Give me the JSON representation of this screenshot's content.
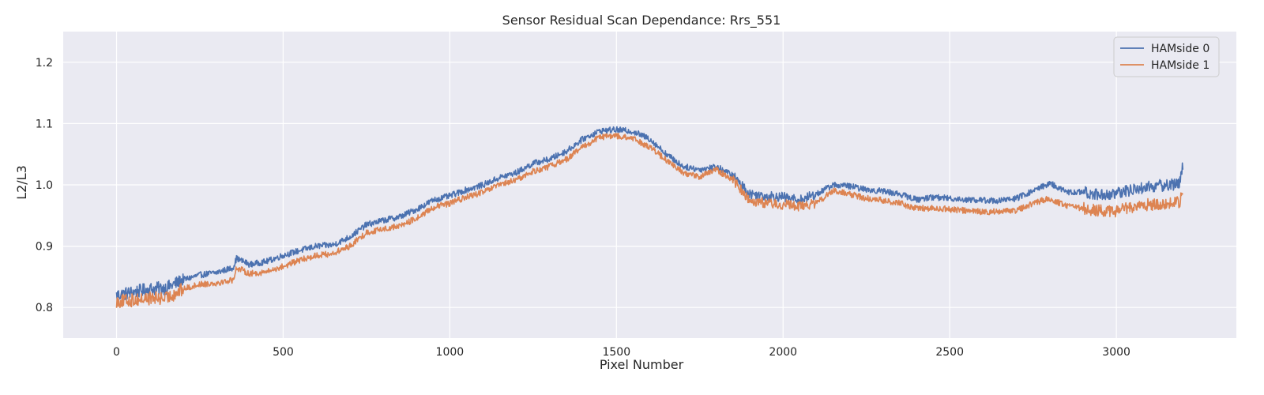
{
  "chart_data": {
    "type": "line",
    "title": "Sensor Residual Scan Dependance: Rrs_551",
    "xlabel": "Pixel Number",
    "ylabel": "L2/L3",
    "xlim": [
      -160,
      3360
    ],
    "ylim": [
      0.75,
      1.25
    ],
    "xticks": [
      0,
      500,
      1000,
      1500,
      2000,
      2500,
      3000
    ],
    "yticks": [
      0.8,
      0.9,
      1.0,
      1.1,
      1.2
    ],
    "xtick_labels": [
      "0",
      "500",
      "1000",
      "1500",
      "2000",
      "2500",
      "3000"
    ],
    "ytick_labels": [
      "0.8",
      "0.9",
      "1.0",
      "1.1",
      "1.2"
    ],
    "grid": true,
    "legend_position": "top-right",
    "background": "#EAEAF2",
    "series": [
      {
        "name": "HAMside 0",
        "color": "#4C72B0",
        "x": [
          0,
          50,
          100,
          150,
          200,
          250,
          300,
          350,
          360,
          400,
          450,
          500,
          550,
          600,
          650,
          700,
          750,
          800,
          850,
          900,
          950,
          1000,
          1050,
          1100,
          1150,
          1200,
          1250,
          1300,
          1350,
          1400,
          1450,
          1500,
          1550,
          1600,
          1650,
          1700,
          1750,
          1800,
          1850,
          1900,
          1950,
          2000,
          2050,
          2100,
          2150,
          2200,
          2250,
          2300,
          2350,
          2400,
          2450,
          2500,
          2550,
          2600,
          2650,
          2700,
          2750,
          2800,
          2850,
          2900,
          2950,
          3000,
          3050,
          3100,
          3150,
          3190,
          3200
        ],
        "y": [
          0.82,
          0.825,
          0.83,
          0.832,
          0.845,
          0.853,
          0.857,
          0.865,
          0.88,
          0.87,
          0.875,
          0.885,
          0.893,
          0.9,
          0.902,
          0.915,
          0.935,
          0.942,
          0.948,
          0.96,
          0.975,
          0.982,
          0.992,
          1.0,
          1.012,
          1.02,
          1.035,
          1.042,
          1.055,
          1.075,
          1.088,
          1.09,
          1.087,
          1.075,
          1.05,
          1.03,
          1.025,
          1.03,
          1.015,
          0.985,
          0.982,
          0.98,
          0.975,
          0.985,
          1.0,
          0.998,
          0.992,
          0.99,
          0.985,
          0.976,
          0.98,
          0.978,
          0.976,
          0.975,
          0.974,
          0.978,
          0.99,
          1.003,
          0.988,
          0.988,
          0.984,
          0.985,
          0.993,
          0.997,
          1.0,
          1.002,
          1.035
        ]
      },
      {
        "name": "HAMside 1",
        "color": "#DD8452",
        "x": [
          0,
          50,
          100,
          150,
          200,
          250,
          300,
          350,
          360,
          400,
          450,
          500,
          550,
          600,
          650,
          700,
          750,
          800,
          850,
          900,
          950,
          1000,
          1050,
          1100,
          1150,
          1200,
          1250,
          1300,
          1350,
          1400,
          1450,
          1500,
          1550,
          1600,
          1650,
          1700,
          1750,
          1800,
          1850,
          1900,
          1950,
          2000,
          2050,
          2100,
          2150,
          2200,
          2250,
          2300,
          2350,
          2400,
          2450,
          2500,
          2550,
          2600,
          2650,
          2700,
          2750,
          2800,
          2850,
          2900,
          2950,
          3000,
          3050,
          3100,
          3150,
          3190,
          3200
        ],
        "y": [
          0.81,
          0.812,
          0.815,
          0.815,
          0.83,
          0.838,
          0.84,
          0.845,
          0.865,
          0.855,
          0.858,
          0.867,
          0.877,
          0.885,
          0.888,
          0.9,
          0.922,
          0.928,
          0.933,
          0.945,
          0.963,
          0.97,
          0.98,
          0.988,
          1.0,
          1.008,
          1.022,
          1.03,
          1.042,
          1.062,
          1.078,
          1.08,
          1.075,
          1.062,
          1.04,
          1.02,
          1.013,
          1.025,
          1.008,
          0.975,
          0.97,
          0.968,
          0.965,
          0.97,
          0.99,
          0.985,
          0.978,
          0.975,
          0.97,
          0.962,
          0.962,
          0.96,
          0.958,
          0.956,
          0.957,
          0.958,
          0.97,
          0.978,
          0.965,
          0.962,
          0.958,
          0.957,
          0.965,
          0.968,
          0.97,
          0.972,
          0.99
        ]
      }
    ]
  }
}
